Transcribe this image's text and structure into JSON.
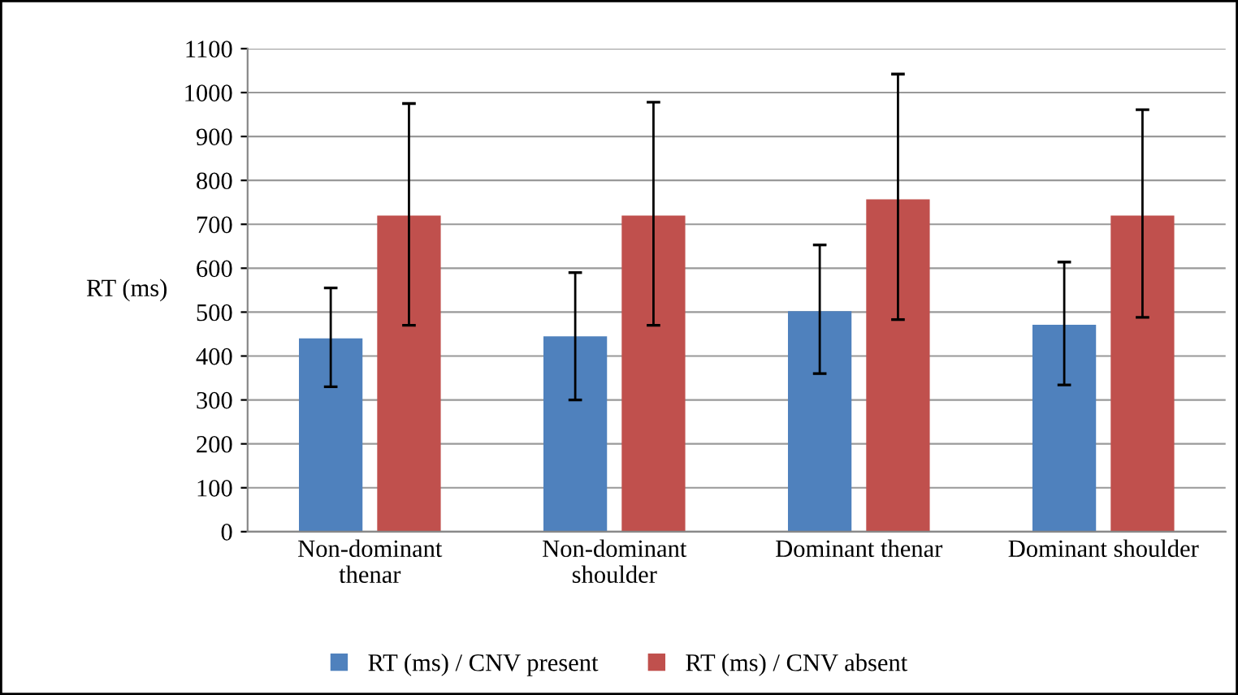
{
  "chart_data": {
    "type": "bar",
    "ylabel": "RT (ms)",
    "categories": [
      "Non-dominant\nthenar",
      "Non-dominant\nshoulder",
      "Dominant thenar",
      "Dominant shoulder"
    ],
    "series": [
      {
        "name": "RT (ms) / CNV present",
        "color": "#4f81bd",
        "values": [
          440,
          445,
          502,
          471
        ],
        "errors": [
          [
            330,
            555
          ],
          [
            300,
            590
          ],
          [
            360,
            653
          ],
          [
            334,
            614
          ]
        ]
      },
      {
        "name": "RT (ms) / CNV absent",
        "color": "#c0504d",
        "values": [
          720,
          720,
          757,
          720
        ],
        "errors": [
          [
            470,
            975
          ],
          [
            470,
            978
          ],
          [
            483,
            1042
          ],
          [
            488,
            961
          ]
        ]
      }
    ],
    "ylim": [
      0,
      1100
    ],
    "yticks": [
      0,
      100,
      200,
      300,
      400,
      500,
      600,
      700,
      800,
      900,
      1000,
      1100
    ],
    "grid": "y",
    "legend": "bottom"
  }
}
